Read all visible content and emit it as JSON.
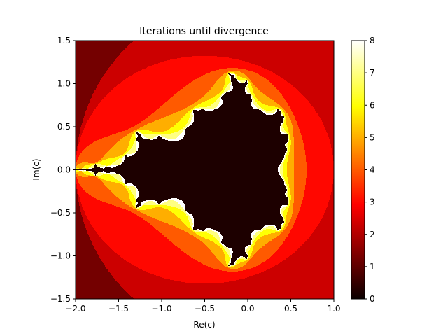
{
  "chart_data": {
    "type": "heatmap",
    "title": "Iterations until divergence",
    "xlabel": "Re(c)",
    "ylabel": "Im(c)",
    "xlim": [
      -2.0,
      1.0
    ],
    "ylim": [
      -1.5,
      1.5
    ],
    "max_iterations": 8,
    "colormap": "hot",
    "x_ticks": [
      -2.0,
      -1.5,
      -1.0,
      -0.5,
      0.0,
      0.5,
      1.0
    ],
    "x_tick_labels": [
      "−2.0",
      "−1.5",
      "−1.0",
      "−0.5",
      "0.0",
      "0.5",
      "1.0"
    ],
    "y_ticks": [
      -1.5,
      -1.0,
      -0.5,
      0.0,
      0.5,
      1.0,
      1.5
    ],
    "y_tick_labels": [
      "−1.5",
      "−1.0",
      "−0.5",
      "0.0",
      "0.5",
      "1.0",
      "1.5"
    ],
    "colorbar": {
      "range": [
        0,
        8
      ],
      "ticks": [
        0,
        1,
        2,
        3,
        4,
        5,
        6,
        7,
        8
      ],
      "tick_labels": [
        "0",
        "1",
        "2",
        "3",
        "4",
        "5",
        "6",
        "7",
        "8"
      ]
    }
  }
}
